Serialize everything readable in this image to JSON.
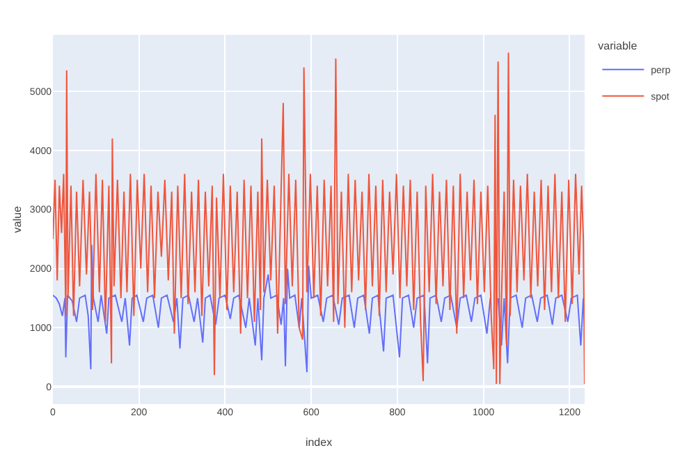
{
  "chart_data": {
    "type": "line",
    "xlabel": "index",
    "ylabel": "value",
    "legend_title": "variable",
    "legend": "top right",
    "grid": true,
    "xlim": [
      0,
      1235
    ],
    "xticks": [
      0,
      200,
      400,
      600,
      800,
      1000,
      1200
    ],
    "ylim": [
      -290,
      5950
    ],
    "yticks": [
      0,
      1000,
      2000,
      3000,
      4000,
      5000
    ],
    "series": [
      {
        "name": "perp",
        "color": "#636efa",
        "x": [
          0,
          8,
          15,
          22,
          28,
          30,
          34,
          45,
          55,
          62,
          75,
          82,
          88,
          90,
          94,
          105,
          112,
          125,
          130,
          145,
          160,
          168,
          178,
          184,
          195,
          210,
          218,
          232,
          245,
          252,
          265,
          280,
          288,
          295,
          302,
          315,
          328,
          336,
          348,
          354,
          365,
          378,
          386,
          400,
          412,
          420,
          432,
          448,
          456,
          470,
          476,
          485,
          490,
          500,
          506,
          520,
          530,
          536,
          540,
          545,
          550,
          562,
          572,
          578,
          590,
          594,
          600,
          615,
          628,
          636,
          650,
          664,
          672,
          688,
          700,
          708,
          722,
          735,
          742,
          755,
          768,
          774,
          790,
          805,
          812,
          826,
          838,
          846,
          862,
          870,
          876,
          890,
          902,
          910,
          924,
          938,
          946,
          960,
          972,
          980,
          994,
          1008,
          1016,
          1024,
          1030,
          1034,
          1042,
          1048,
          1056,
          1062,
          1076,
          1090,
          1098,
          1112,
          1125,
          1133,
          1148,
          1160,
          1168,
          1182,
          1196,
          1204,
          1218,
          1226,
          1232
        ],
        "values": [
          1550,
          1500,
          1400,
          1200,
          1500,
          500,
          1550,
          1450,
          1100,
          1500,
          1550,
          1200,
          300,
          2400,
          1500,
          1100,
          1550,
          900,
          1500,
          1550,
          1100,
          1500,
          700,
          1500,
          1550,
          1100,
          1500,
          1550,
          1000,
          1500,
          1550,
          1100,
          1500,
          650,
          1500,
          1550,
          1100,
          1500,
          750,
          1500,
          1550,
          1050,
          1500,
          1550,
          1150,
          1500,
          1550,
          1000,
          1500,
          700,
          1500,
          450,
          1500,
          1900,
          1500,
          1550,
          1050,
          1500,
          350,
          2000,
          1500,
          1550,
          1000,
          1500,
          250,
          2050,
          1500,
          1550,
          1100,
          1500,
          1550,
          1050,
          1500,
          1550,
          1000,
          1500,
          1550,
          900,
          1500,
          1550,
          600,
          1500,
          1550,
          500,
          1500,
          1550,
          1000,
          1500,
          1550,
          400,
          1500,
          1550,
          1100,
          1500,
          1550,
          1000,
          1500,
          1550,
          1100,
          1500,
          1550,
          900,
          1500,
          null,
          null,
          1500,
          700,
          1500,
          400,
          1500,
          1550,
          1000,
          1500,
          1550,
          1100,
          1500,
          1550,
          1050,
          1500,
          1550,
          1100,
          1500,
          1550,
          700,
          1500
        ]
      },
      {
        "name": "spot",
        "color": "#ef553b",
        "x": [
          0,
          5,
          10,
          15,
          20,
          25,
          30,
          32,
          35,
          42,
          48,
          55,
          62,
          70,
          78,
          85,
          92,
          100,
          108,
          115,
          122,
          130,
          136,
          138,
          142,
          150,
          158,
          165,
          172,
          180,
          188,
          196,
          204,
          212,
          220,
          228,
          236,
          244,
          252,
          260,
          268,
          276,
          282,
          290,
          298,
          306,
          314,
          322,
          330,
          338,
          346,
          354,
          362,
          370,
          375,
          380,
          388,
          396,
          404,
          412,
          420,
          428,
          436,
          444,
          452,
          460,
          468,
          476,
          482,
          485,
          490,
          498,
          506,
          514,
          522,
          530,
          535,
          540,
          548,
          556,
          564,
          572,
          580,
          583,
          590,
          598,
          606,
          614,
          622,
          630,
          638,
          646,
          652,
          657,
          662,
          670,
          678,
          686,
          694,
          702,
          710,
          718,
          726,
          734,
          742,
          750,
          758,
          766,
          774,
          782,
          790,
          798,
          806,
          814,
          822,
          830,
          838,
          846,
          854,
          860,
          866,
          874,
          882,
          890,
          898,
          906,
          914,
          922,
          930,
          938,
          946,
          954,
          962,
          970,
          978,
          986,
          994,
          1002,
          1010,
          1018,
          1024,
          1027,
          1030,
          1034,
          1038,
          1042,
          1048,
          1054,
          1058,
          1062,
          1070,
          1078,
          1086,
          1094,
          1102,
          1110,
          1118,
          1126,
          1134,
          1142,
          1150,
          1158,
          1166,
          1174,
          1182,
          1190,
          1198,
          1206,
          1214,
          1222,
          1228,
          1232,
          1235
        ],
        "values": [
          2500,
          3500,
          1800,
          3400,
          2600,
          3600,
          1200,
          5350,
          1500,
          3400,
          1200,
          3300,
          1700,
          3500,
          1900,
          3300,
          1300,
          3600,
          1600,
          3500,
          1100,
          3400,
          400,
          4200,
          1700,
          3500,
          1500,
          3300,
          1600,
          3600,
          1200,
          3500,
          2000,
          3600,
          1600,
          3400,
          1500,
          3300,
          2200,
          3500,
          1800,
          3300,
          900,
          3400,
          1500,
          3600,
          1400,
          3300,
          1600,
          3500,
          1200,
          3300,
          1700,
          3400,
          200,
          3200,
          1500,
          3600,
          1300,
          3400,
          1600,
          3300,
          900,
          3500,
          1500,
          3400,
          1100,
          3300,
          1300,
          4200,
          1600,
          3500,
          1800,
          3400,
          900,
          3300,
          4800,
          1400,
          3600,
          1700,
          3500,
          1000,
          800,
          5400,
          1600,
          3600,
          1500,
          3400,
          1200,
          3500,
          1700,
          3400,
          1100,
          5550,
          1400,
          3300,
          1000,
          3600,
          1600,
          3500,
          1800,
          3300,
          1300,
          3600,
          1700,
          3400,
          1200,
          3500,
          1600,
          3300,
          1900,
          3600,
          1500,
          3400,
          1700,
          3500,
          1300,
          3300,
          1100,
          100,
          3400,
          1600,
          3600,
          1400,
          3300,
          1700,
          3500,
          1300,
          3400,
          900,
          3600,
          1500,
          3300,
          1800,
          3500,
          1400,
          3300,
          1600,
          3400,
          1200,
          300,
          4600,
          50,
          5500,
          50,
          1500,
          3300,
          700,
          5650,
          1200,
          3500,
          1600,
          3400,
          1800,
          3600,
          1500,
          3300,
          1700,
          3500,
          1300,
          3400,
          1600,
          3600,
          1500,
          3300,
          1100,
          3500,
          1400,
          3600,
          1900,
          3400,
          2500,
          50
        ]
      }
    ]
  }
}
